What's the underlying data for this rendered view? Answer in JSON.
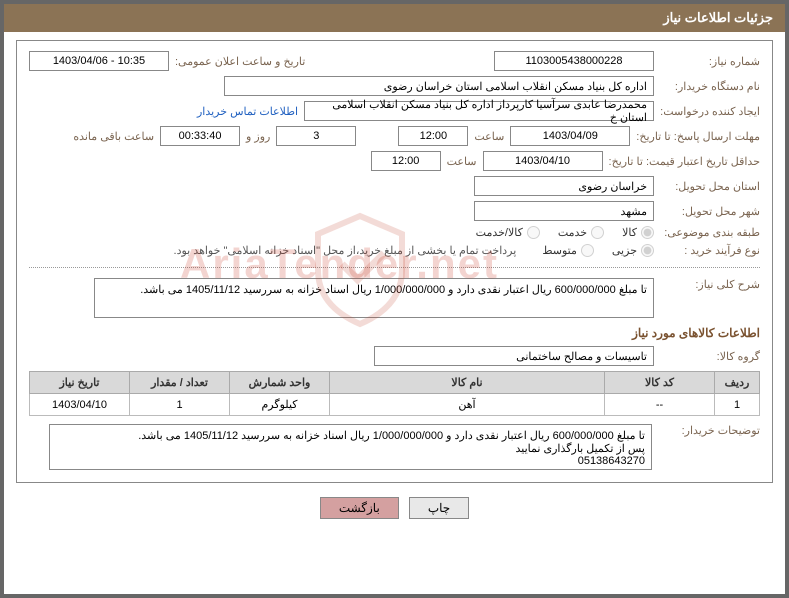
{
  "header": {
    "title": "جزئیات اطلاعات نیاز"
  },
  "labels": {
    "need_no": "شماره نیاز:",
    "announce_dt": "تاریخ و ساعت اعلان عمومی:",
    "buyer_org": "نام دستگاه خریدار:",
    "requester": "ایجاد کننده درخواست:",
    "contact_link": "اطلاعات تماس خریدار",
    "deadline": "مهلت ارسال پاسخ: تا تاریخ:",
    "hour": "ساعت",
    "days_and": "روز و",
    "remain": "ساعت باقی مانده",
    "min_validity": "حداقل تاریخ اعتبار قیمت: تا تاریخ:",
    "delivery_prov": "استان محل تحویل:",
    "delivery_city": "شهر محل تحویل:",
    "subject_class": "طبقه بندی موضوعی:",
    "process_type": "نوع فرآیند خرید :",
    "payment_note": "پرداخت تمام یا بخشی از مبلغ خرید،از محل \"اسناد خزانه اسلامی\" خواهد بود.",
    "general_desc": "شرح کلی نیاز:",
    "items_section": "اطلاعات کالاهای مورد نیاز",
    "goods_group": "گروه کالا:",
    "buyer_notes": "توضیحات خریدار:"
  },
  "values": {
    "need_no": "1103005438000228",
    "announce_dt": "1403/04/06 - 10:35",
    "buyer_org": "اداره کل بنیاد مسکن انقلاب اسلامی استان خراسان رضوی",
    "requester": "محمدرضا عابدی سرآسیا کارپرداز اداره کل بنیاد مسکن انقلاب اسلامی استان خ",
    "deadline_date": "1403/04/09",
    "deadline_time": "12:00",
    "remain_days": "3",
    "remain_time": "00:33:40",
    "validity_date": "1403/04/10",
    "validity_time": "12:00",
    "province": "خراسان رضوی",
    "city": "مشهد",
    "general_desc": "تا مبلغ  600/000/000 ریال اعتبار نقدی دارد و 1/000/000/000 ریال اسناد خزانه به سررسید 1405/11/12 می باشد.",
    "goods_group": "تاسیسات و مصالح ساختمانی",
    "buyer_notes": "تا مبلغ  600/000/000 ریال اعتبار نقدی دارد و 1/000/000/000 ریال اسناد خزانه به سررسید 1405/11/12 می باشد.\nپس از تکمیل بارگذاری نمایید\n05138643270"
  },
  "radios": {
    "subject": [
      {
        "label": "کالا",
        "checked": true
      },
      {
        "label": "خدمت",
        "checked": false
      },
      {
        "label": "کالا/خدمت",
        "checked": false
      }
    ],
    "process": [
      {
        "label": "جزیی",
        "checked": true
      },
      {
        "label": "متوسط",
        "checked": false
      }
    ]
  },
  "table": {
    "headers": {
      "row": "ردیف",
      "code": "کد کالا",
      "name": "نام کالا",
      "unit": "واحد شمارش",
      "qty": "تعداد / مقدار",
      "date": "تاریخ نیاز"
    },
    "rows": [
      {
        "row": "1",
        "code": "--",
        "name": "آهن",
        "unit": "کیلوگرم",
        "qty": "1",
        "date": "1403/04/10"
      }
    ]
  },
  "buttons": {
    "print": "چاپ",
    "back": "بازگشت"
  },
  "watermark": "AriaTender.net"
}
